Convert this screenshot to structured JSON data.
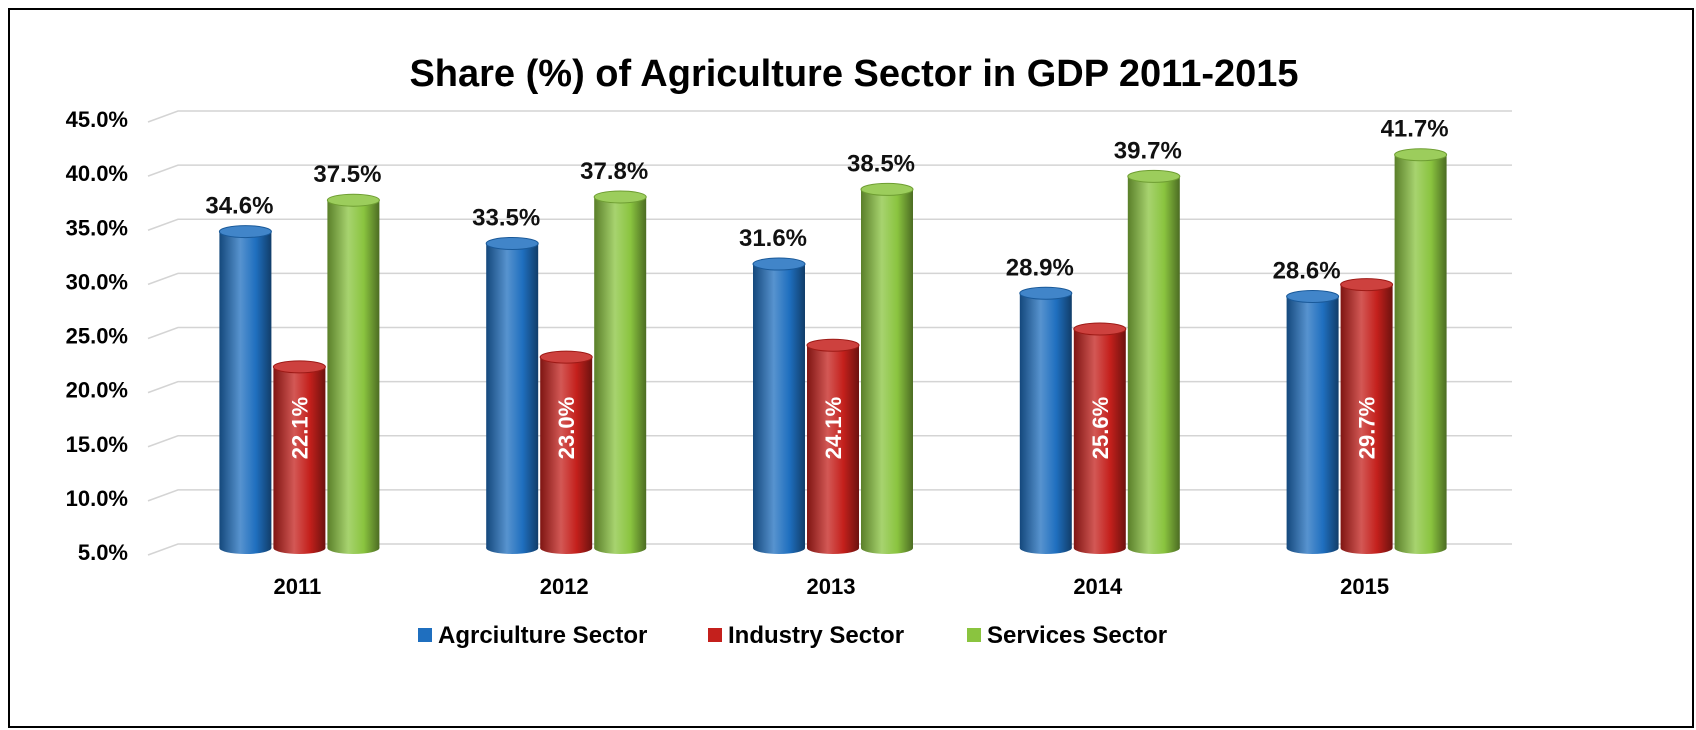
{
  "chart_data": {
    "type": "bar",
    "title": "Share (%) of Agriculture Sector in GDP 2011-2015",
    "xlabel": "",
    "ylabel": "",
    "categories": [
      "2011",
      "2012",
      "2013",
      "2014",
      "2015"
    ],
    "ylim": [
      5,
      45
    ],
    "yticks": [
      5,
      10,
      15,
      20,
      25,
      30,
      35,
      40,
      45
    ],
    "ytick_labels": [
      "5.0%",
      "10.0%",
      "15.0%",
      "20.0%",
      "25.0%",
      "30.0%",
      "35.0%",
      "40.0%",
      "45.0%"
    ],
    "grid": true,
    "legend_position": "bottom",
    "series": [
      {
        "name": "Agrciulture Sector",
        "color": "#1f6fbf",
        "values": [
          34.6,
          33.5,
          31.6,
          28.9,
          28.6
        ],
        "labels": [
          "34.6%",
          "33.5%",
          "31.6%",
          "28.9%",
          "28.6%"
        ],
        "label_position": "outside-top"
      },
      {
        "name": "Industry Sector",
        "color": "#c4201c",
        "values": [
          22.1,
          23.0,
          24.1,
          25.6,
          29.7
        ],
        "labels": [
          "22.1%",
          "23.0%",
          "24.1%",
          "25.6%",
          "29.7%"
        ],
        "label_position": "inside-rotated"
      },
      {
        "name": "Services Sector",
        "color": "#8ac43f",
        "values": [
          37.5,
          37.8,
          38.5,
          39.7,
          41.7
        ],
        "labels": [
          "37.5%",
          "37.8%",
          "38.5%",
          "39.7%",
          "41.7%"
        ],
        "label_position": "outside-top"
      }
    ]
  }
}
